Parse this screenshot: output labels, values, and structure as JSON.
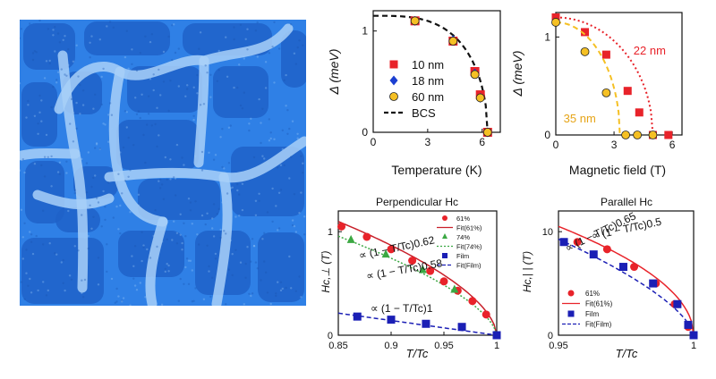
{
  "micrograph": {
    "base_color": "#2f80e6",
    "dark_color": "#1e62c8",
    "light_color": "#a8d0f8"
  },
  "chart_data": [
    {
      "id": "gap-vs-temperature",
      "type": "scatter",
      "xlabel": "Temperature (K)",
      "ylabel": "Δ (meV)",
      "xlim": [
        0,
        7
      ],
      "ylim": [
        0,
        1.2
      ],
      "xticks": [
        0,
        3,
        6
      ],
      "yticks": [
        0,
        1
      ],
      "series": [
        {
          "name": "10 nm",
          "marker": "square",
          "color": "#e8232a",
          "x": [
            2.3,
            4.4,
            5.6,
            5.9,
            6.3
          ],
          "y": [
            1.1,
            0.9,
            0.6,
            0.37,
            0.0
          ]
        },
        {
          "name": "18 nm",
          "marker": "diamond",
          "color": "#1b3fd1",
          "x": [
            2.3,
            4.4,
            5.6,
            5.9,
            6.3
          ],
          "y": [
            1.1,
            0.91,
            0.58,
            0.34,
            0.0
          ]
        },
        {
          "name": "60 nm",
          "marker": "circle",
          "color": "#f5c024",
          "x": [
            2.3,
            4.4,
            5.6,
            5.9,
            6.3
          ],
          "y": [
            1.1,
            0.9,
            0.57,
            0.34,
            0.0
          ]
        },
        {
          "name": "BCS",
          "marker": "dashed-line",
          "color": "#111111",
          "Tc": 6.3,
          "delta0": 1.15
        }
      ],
      "legend": [
        "10 nm",
        "18 nm",
        "60 nm",
        "BCS"
      ]
    },
    {
      "id": "gap-vs-field",
      "type": "scatter",
      "xlabel": "Magnetic field (T)",
      "ylabel": "Δ (meV)",
      "xlim": [
        0,
        6.5
      ],
      "ylim": [
        0,
        1.25
      ],
      "xticks": [
        0,
        3,
        6
      ],
      "yticks": [
        0,
        1
      ],
      "series": [
        {
          "name": "22 nm",
          "marker": "square",
          "color": "#e8232a",
          "fit": "dotted",
          "Hc": 5.0,
          "x": [
            0,
            1.5,
            2.6,
            3.7,
            4.3,
            5.0,
            5.8
          ],
          "y": [
            1.2,
            1.05,
            0.82,
            0.45,
            0.23,
            0.0,
            0.0
          ]
        },
        {
          "name": "35 nm",
          "marker": "circle",
          "color": "#f5c024",
          "fit": "dashed",
          "Hc": 3.3,
          "x": [
            0,
            1.5,
            2.6,
            3.6,
            4.2,
            5.0
          ],
          "y": [
            1.15,
            0.85,
            0.43,
            0.0,
            0.0,
            0.0
          ]
        }
      ],
      "annotations": [
        {
          "text": "22 nm",
          "x": 4.0,
          "y": 0.82,
          "color": "#e8232a"
        },
        {
          "text": "35 nm",
          "x": 0.4,
          "y": 0.13,
          "color": "#e6a417"
        }
      ]
    },
    {
      "id": "perpendicular-hc",
      "type": "scatter",
      "title": "Perpendicular Hc",
      "xlabel": "T/Tc",
      "ylabel": "Hc,⊥ (T)",
      "xlim": [
        0.85,
        1.0
      ],
      "ylim": [
        0,
        1.2
      ],
      "xticks": [
        0.85,
        0.9,
        0.95,
        1.0
      ],
      "xtick_labels": [
        "0.85",
        "0.9",
        "0.95",
        "1"
      ],
      "yticks": [
        0,
        1
      ],
      "series": [
        {
          "name": "61%",
          "marker": "circle",
          "color": "#e8232a",
          "x": [
            0.853,
            0.877,
            0.9,
            0.92,
            0.937,
            0.95,
            0.963,
            0.977,
            0.99
          ],
          "y": [
            1.05,
            0.95,
            0.83,
            0.72,
            0.62,
            0.52,
            0.43,
            0.33,
            0.2
          ]
        },
        {
          "name": "Fit(61%)",
          "marker": "solid-line",
          "color": "#c8202a",
          "exponent": 0.58,
          "amp": 3.3
        },
        {
          "name": "74%",
          "marker": "triangle",
          "color": "#3ba843",
          "x": [
            0.862,
            0.895,
            0.93,
            0.96
          ],
          "y": [
            0.92,
            0.78,
            0.63,
            0.44
          ]
        },
        {
          "name": "Fit(74%)",
          "marker": "dotted-line",
          "color": "#3ba843",
          "exponent": 0.62,
          "amp": 3.1
        },
        {
          "name": "Film",
          "marker": "square",
          "color": "#1b1fb5",
          "x": [
            0.868,
            0.9,
            0.933,
            0.967,
            1.0
          ],
          "y": [
            0.18,
            0.15,
            0.11,
            0.08,
            0.0
          ]
        },
        {
          "name": "Fit(Film)",
          "marker": "dashed-line",
          "color": "#1b1fb5",
          "exponent": 1.0,
          "amp": 1.42
        }
      ],
      "annotations": [
        {
          "text": "∝ (1 − T/Tc)0.62",
          "position": "upper"
        },
        {
          "text": "∝ (1 − T/Tc)0.58",
          "position": "middle"
        },
        {
          "text": "∝ (1 − T/Tc)1",
          "position": "lower"
        }
      ]
    },
    {
      "id": "parallel-hc",
      "type": "scatter",
      "title": "Parallel Hc",
      "xlabel": "T/Tc",
      "ylabel": "Hc,| | (T)",
      "xlim": [
        0.95,
        1.0
      ],
      "ylim": [
        0,
        12
      ],
      "xticks": [
        0.95,
        1.0
      ],
      "xtick_labels": [
        "0.95",
        "1"
      ],
      "yticks": [
        0,
        10
      ],
      "series": [
        {
          "name": "61%",
          "marker": "circle",
          "color": "#e8232a",
          "x": [
            0.957,
            0.968,
            0.978,
            0.986,
            0.993,
            0.998
          ],
          "y": [
            9.0,
            8.3,
            6.6,
            5.0,
            3.0,
            0.8
          ]
        },
        {
          "name": "Fit(61%)",
          "marker": "solid-line",
          "color": "#e8232a",
          "exponent": 0.5,
          "amp": 47
        },
        {
          "name": "Film",
          "marker": "square",
          "color": "#1b1fb5",
          "x": [
            0.952,
            0.963,
            0.974,
            0.985,
            0.994,
            0.998,
            1.0
          ],
          "y": [
            9.0,
            7.8,
            6.6,
            5.0,
            3.0,
            1.0,
            0.0
          ]
        },
        {
          "name": "Fit(Film)",
          "marker": "dashed-line",
          "color": "#1b1fb5",
          "exponent": 0.65,
          "amp": 65
        }
      ],
      "annotations": [
        {
          "text": "∝ (1 − T/Tc)0.5",
          "position": "upper"
        },
        {
          "text": "∝ (1 − T/Tc)0.65",
          "position": "lower"
        }
      ]
    }
  ]
}
